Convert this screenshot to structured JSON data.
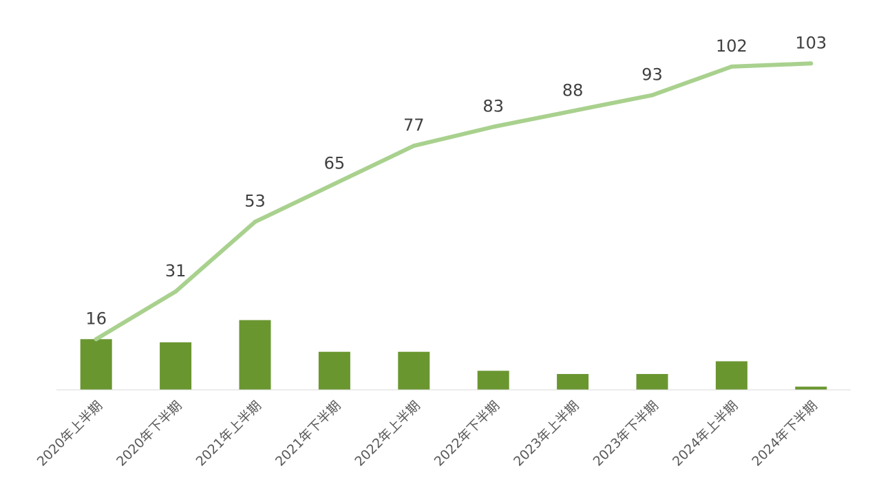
{
  "chart_data": {
    "type": "bar",
    "categories": [
      "2020年上半期",
      "2020年下半期",
      "2021年上半期",
      "2021年下半期",
      "2022年上半期",
      "2022年下半期",
      "2023年上半期",
      "2023年下半期",
      "2024年上半期",
      "2024年下半期"
    ],
    "series": [
      {
        "type": "bar",
        "values": [
          16,
          15,
          22,
          12,
          12,
          6,
          5,
          5,
          9,
          1
        ],
        "color": "#6a9630"
      },
      {
        "type": "line",
        "values": [
          16,
          31,
          53,
          65,
          77,
          83,
          88,
          93,
          102,
          103
        ],
        "data_labels": [
          "16",
          "31",
          "53",
          "65",
          "77",
          "83",
          "88",
          "93",
          "102",
          "103"
        ],
        "color": "#a9d18e"
      }
    ],
    "ylim": [
      0,
      115
    ],
    "grid": false,
    "legend": "none",
    "title": "",
    "xlabel": "",
    "ylabel": ""
  }
}
